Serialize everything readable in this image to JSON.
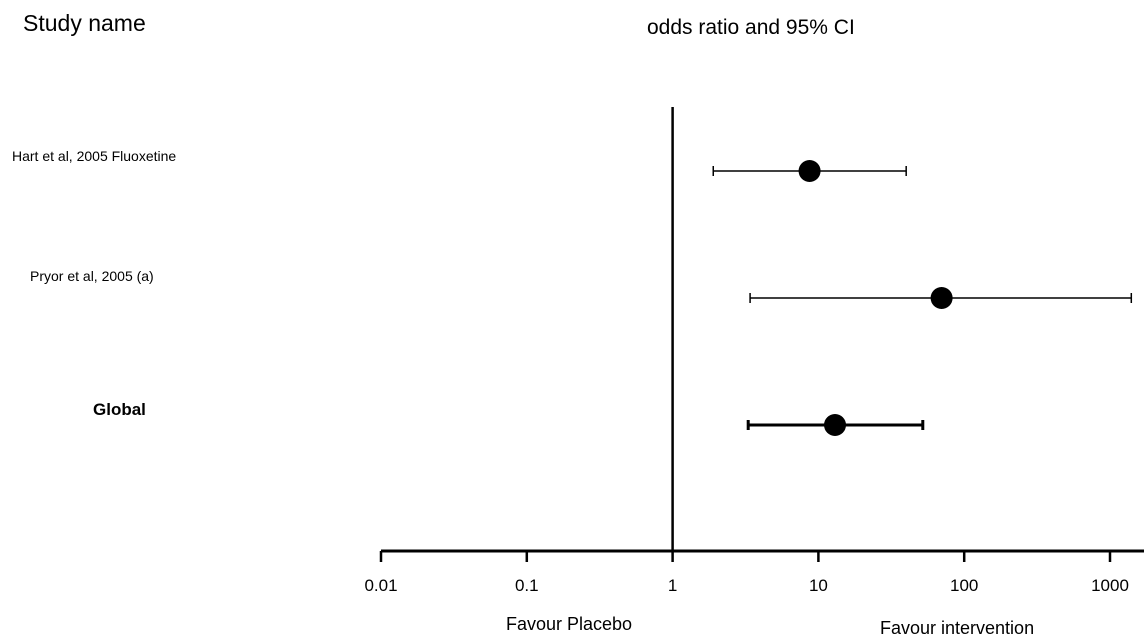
{
  "column_header": "Study name",
  "chart_data": {
    "type": "forest",
    "title": "odds ratio and 95% CI",
    "x_scale": "log",
    "xlim": [
      0.01,
      1000
    ],
    "reference_line": 1,
    "x_ticks": [
      0.01,
      0.1,
      1,
      10,
      100,
      1000
    ],
    "x_tick_labels": [
      "0.01",
      "0.1",
      "1",
      "10",
      "100",
      "1000"
    ],
    "studies": [
      {
        "label": "Hart et al, 2005 Fluoxetine",
        "estimate": 8.7,
        "lower": 1.9,
        "upper": 40,
        "bold": false
      },
      {
        "label": "Pryor et al, 2005 (a)",
        "estimate": 70,
        "lower": 3.4,
        "upper": 1400,
        "bold": false
      },
      {
        "label": "Global",
        "estimate": 13,
        "lower": 3.3,
        "upper": 52,
        "bold": true
      }
    ],
    "favour_left": "Favour Placebo",
    "favour_right": "Favour intervention"
  }
}
